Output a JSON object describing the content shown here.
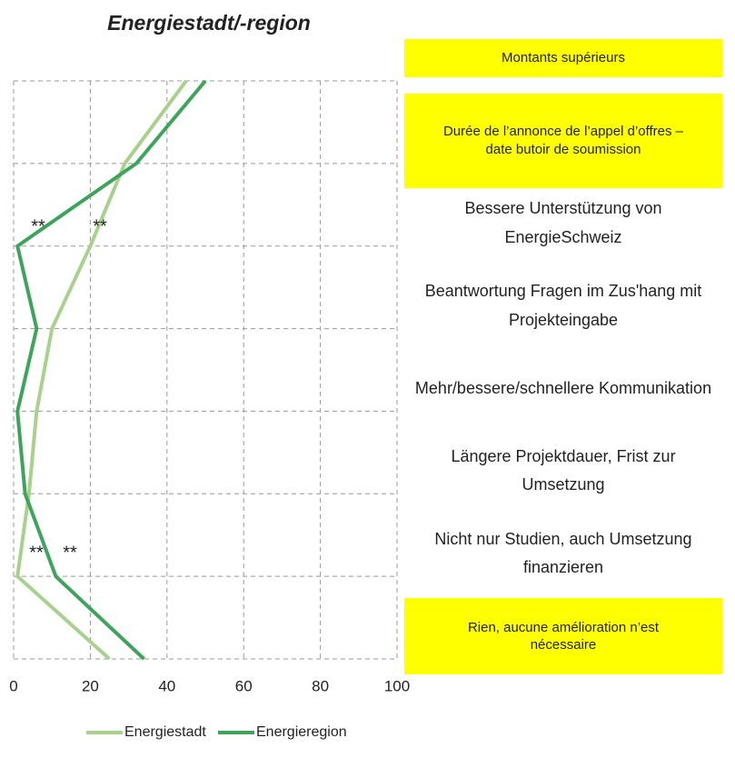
{
  "chart_data": {
    "type": "line",
    "title": "Energiestadt/-region",
    "orientation": "horizontal",
    "categories": [
      "Montants supérieurs",
      "Durée de l’annonce de l’appel d’offres – date butoir de soumission",
      "Bessere Unterstützung von EnergieSchweiz",
      "Beantwortung Fragen im Zus'hang mit Projekteingabe",
      "Mehr/bessere/schnellere Kommunikation",
      "Längere Projektdauer, Frist zur Umsetzung",
      "Nicht nur Studien, auch Umsetzung finanzieren",
      "Rien, aucune amélioration n’est nécessaire"
    ],
    "highlighted": [
      true,
      true,
      false,
      false,
      false,
      false,
      false,
      true
    ],
    "highlight_color": "#ffff00",
    "series": [
      {
        "name": "Energiestadt",
        "color": "#a9d18e",
        "values": [
          45,
          29,
          20,
          10,
          6,
          4,
          1,
          25
        ]
      },
      {
        "name": "Energieregion",
        "color": "#3fa45b",
        "values": [
          50,
          32,
          1,
          6,
          1,
          3,
          11,
          34
        ]
      }
    ],
    "annotations": [
      "**",
      "**",
      "**",
      "**"
    ],
    "xlim": [
      0,
      100
    ],
    "xticks": [
      0,
      20,
      40,
      60,
      80,
      100
    ],
    "grid": true,
    "legend": "bottom"
  }
}
